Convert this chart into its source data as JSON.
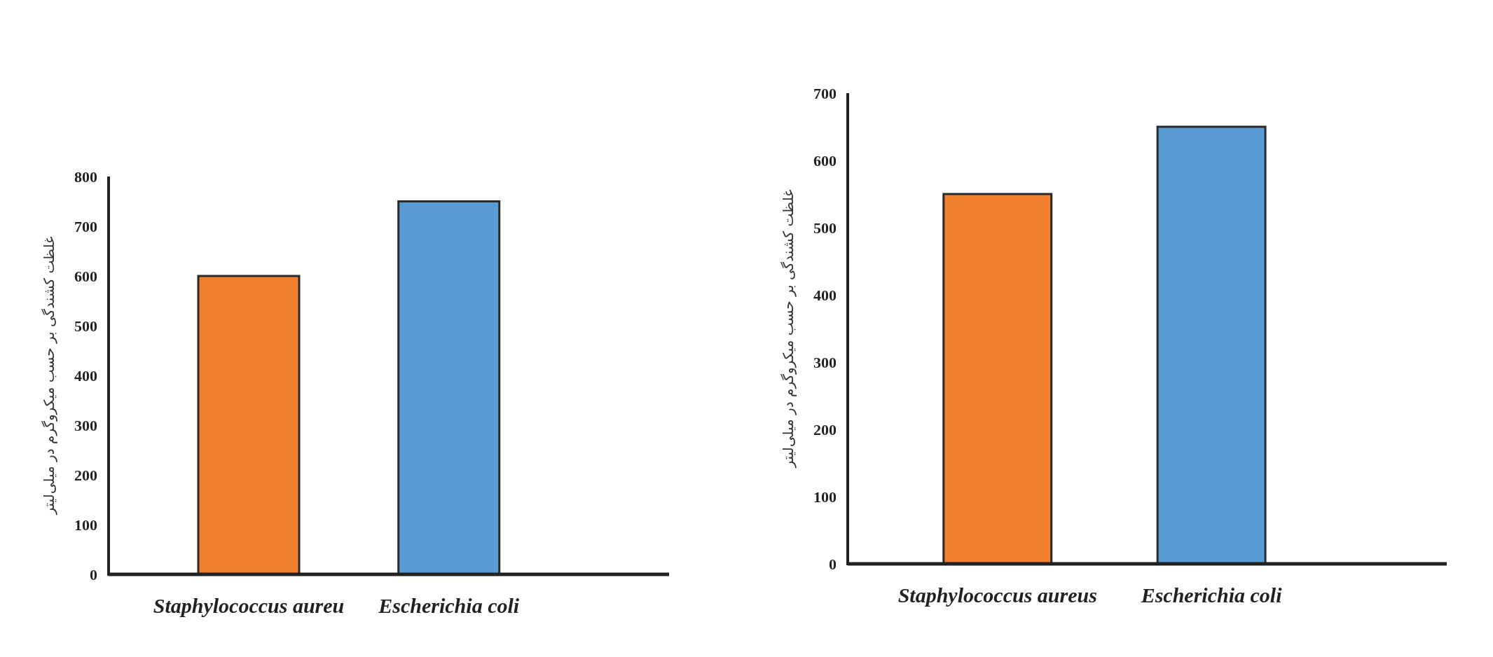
{
  "chart_data": [
    {
      "type": "bar",
      "ylabel": "غلظت کشندگی بر حسب میکروگرم در میلی‌لیتر",
      "categories": [
        "Staphylococcus aureu",
        "Escherichia coli"
      ],
      "values": [
        600,
        750
      ],
      "colors": [
        "#f07f2f",
        "#5b9bd5"
      ],
      "ylim": [
        0,
        800
      ],
      "yticks": [
        0,
        100,
        200,
        300,
        400,
        500,
        600,
        700,
        800
      ]
    },
    {
      "type": "bar",
      "ylabel": "غلظت کشندگی بر حسب میکروگرم در میلی‌لیتر",
      "categories": [
        "Staphylococcus aureus",
        "Escherichia coli"
      ],
      "values": [
        550,
        650
      ],
      "colors": [
        "#f07f2f",
        "#5b9bd5"
      ],
      "ylim": [
        0,
        700
      ],
      "yticks": [
        0,
        100,
        200,
        300,
        400,
        500,
        600,
        700
      ]
    }
  ]
}
